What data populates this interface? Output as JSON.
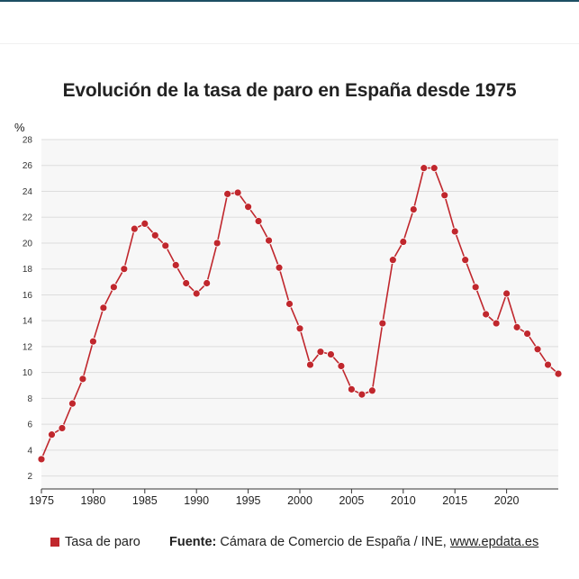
{
  "chart_data": {
    "type": "line",
    "title": "Evolución de la tasa de paro en España desde 1975",
    "ylabel": "%",
    "xlabel": "",
    "ylim": [
      1,
      28
    ],
    "xlim": [
      1975,
      2025
    ],
    "y_ticks": [
      2,
      4,
      6,
      8,
      10,
      12,
      14,
      16,
      18,
      20,
      22,
      24,
      26,
      28
    ],
    "x_ticks": [
      1975,
      1980,
      1985,
      1990,
      1995,
      2000,
      2005,
      2010,
      2015,
      2020
    ],
    "grid": true,
    "legend_position": "bottom-left",
    "series": [
      {
        "name": "Tasa de paro",
        "color": "#c0272d",
        "x": [
          1975,
          1976,
          1977,
          1978,
          1979,
          1980,
          1981,
          1982,
          1983,
          1984,
          1985,
          1986,
          1987,
          1988,
          1989,
          1990,
          1991,
          1992,
          1993,
          1994,
          1995,
          1996,
          1997,
          1998,
          1999,
          2000,
          2001,
          2002,
          2003,
          2004,
          2005,
          2006,
          2007,
          2008,
          2009,
          2010,
          2011,
          2012,
          2013,
          2014,
          2015,
          2016,
          2017,
          2018,
          2019,
          2020,
          2021,
          2022,
          2023,
          2024,
          2025
        ],
        "values": [
          3.3,
          5.2,
          5.7,
          7.6,
          9.5,
          12.4,
          15.0,
          16.6,
          18.0,
          21.1,
          21.5,
          20.6,
          19.8,
          18.3,
          16.9,
          16.1,
          16.9,
          20.0,
          23.8,
          23.9,
          22.8,
          21.7,
          20.2,
          18.1,
          15.3,
          13.4,
          10.6,
          11.6,
          11.4,
          10.5,
          8.7,
          8.3,
          8.6,
          13.8,
          18.7,
          20.1,
          22.6,
          25.8,
          25.8,
          23.7,
          20.9,
          18.7,
          16.6,
          14.5,
          13.8,
          16.1,
          13.5,
          13.0,
          11.8,
          10.6,
          9.9
        ]
      }
    ]
  },
  "legend": {
    "label": "Tasa de paro"
  },
  "source": {
    "prefix": "Fuente:",
    "text": " Cámara de Comercio de España / INE, ",
    "link": "www.epdata.es"
  }
}
